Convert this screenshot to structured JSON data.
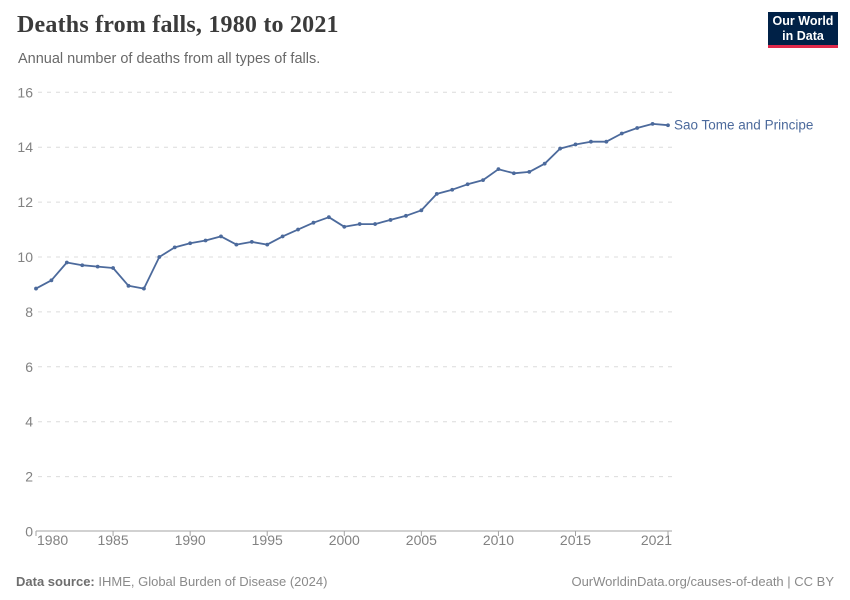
{
  "chart_data": {
    "type": "line",
    "title": "Deaths from falls, 1980 to 2021",
    "subtitle": "Annual number of deaths from all types of falls.",
    "xlabel": "",
    "ylabel": "",
    "xlim": [
      1980,
      2021
    ],
    "ylim": [
      0,
      16
    ],
    "grid": "horizontal-dashed",
    "legend": "inline-end-label",
    "x_ticks": [
      1980,
      1985,
      1990,
      1995,
      2000,
      2005,
      2010,
      2015,
      2021
    ],
    "x_tick_labels": [
      "1980",
      "1985",
      "1990",
      "1995",
      "2000",
      "2005",
      "2010",
      "2015",
      "2021"
    ],
    "y_ticks": [
      0,
      2,
      4,
      6,
      8,
      10,
      12,
      14,
      16
    ],
    "x": [
      1980,
      1981,
      1982,
      1983,
      1984,
      1985,
      1986,
      1987,
      1988,
      1989,
      1990,
      1991,
      1992,
      1993,
      1994,
      1995,
      1996,
      1997,
      1998,
      1999,
      2000,
      2001,
      2002,
      2003,
      2004,
      2005,
      2006,
      2007,
      2008,
      2009,
      2010,
      2011,
      2012,
      2013,
      2014,
      2015,
      2016,
      2017,
      2018,
      2019,
      2020,
      2021
    ],
    "series": [
      {
        "name": "Sao Tome and Principe",
        "color": "#4c6a9c",
        "values": [
          8.85,
          9.15,
          9.8,
          9.7,
          9.65,
          9.6,
          8.95,
          8.85,
          10.0,
          10.35,
          10.5,
          10.6,
          10.75,
          10.45,
          10.55,
          10.45,
          10.75,
          11.0,
          11.25,
          11.45,
          11.1,
          11.2,
          11.2,
          11.35,
          11.5,
          11.7,
          12.3,
          12.45,
          12.65,
          12.8,
          13.2,
          13.05,
          13.1,
          13.4,
          13.95,
          14.1,
          14.2,
          14.2,
          14.5,
          14.7,
          14.85,
          14.8
        ]
      }
    ]
  },
  "logo": {
    "line1": "Our World",
    "line2": "in Data"
  },
  "footer": {
    "source_label": "Data source:",
    "source_value": " IHME, Global Burden of Disease (2024)",
    "credit": "OurWorldinData.org/causes-of-death | CC BY"
  },
  "colors": {
    "line": "#4c6a9c",
    "logo_navy": "#002147",
    "logo_red": "#e0294b",
    "gridline": "#dcdcdc",
    "axis": "#a3a3a3",
    "tick_text": "#828282"
  }
}
